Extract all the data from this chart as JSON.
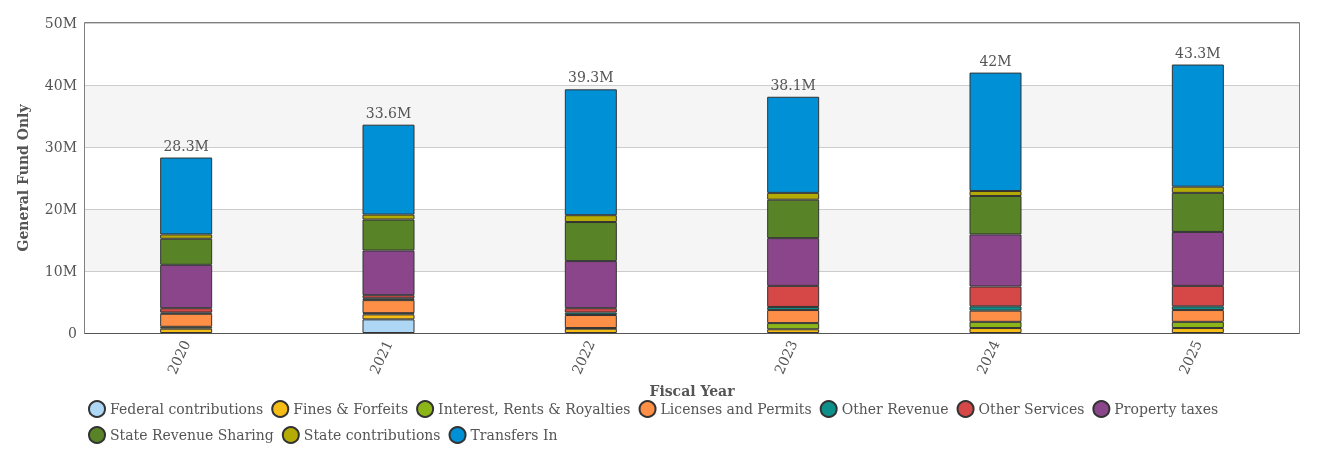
{
  "chart_data": {
    "type": "bar",
    "stacked": true,
    "xlabel": "Fiscal Year",
    "ylabel": "General Fund Only",
    "categories": [
      "2020",
      "2021",
      "2022",
      "2023",
      "2024",
      "2025"
    ],
    "series": [
      {
        "name": "Federal contributions",
        "color": "#aed6f5",
        "values": [
          null,
          2.2,
          null,
          null,
          null,
          null
        ]
      },
      {
        "name": "Fines & Forfeits",
        "color": "#f5bc16",
        "values": [
          0.7,
          0.8,
          0.7,
          0.6,
          0.8,
          0.8
        ]
      },
      {
        "name": "Interest, Rents & Royalties",
        "color": "#8cb618",
        "values": [
          0.3,
          0.2,
          0.1,
          1.0,
          1.0,
          1.0
        ]
      },
      {
        "name": "Licenses and Permits",
        "color": "#fd8f47",
        "values": [
          2.1,
          2.1,
          2.1,
          2.1,
          1.8,
          1.9
        ]
      },
      {
        "name": "Other Revenue",
        "color": "#0e8f8a",
        "values": [
          0.2,
          0.3,
          0.4,
          0.5,
          0.7,
          0.6
        ]
      },
      {
        "name": "Other Services",
        "color": "#d64747",
        "values": [
          0.7,
          0.5,
          0.7,
          3.4,
          3.2,
          3.3
        ]
      },
      {
        "name": "Property taxes",
        "color": "#8b468b",
        "values": [
          7.0,
          7.2,
          7.6,
          7.7,
          8.4,
          8.7
        ]
      },
      {
        "name": "State Revenue Sharing",
        "color": "#588427",
        "values": [
          4.2,
          5.0,
          6.3,
          6.2,
          6.2,
          6.3
        ]
      },
      {
        "name": "State contributions",
        "color": "#b5ab05",
        "values": [
          0.7,
          0.8,
          1.1,
          1.1,
          0.8,
          1.0
        ]
      },
      {
        "name": "Transfers In",
        "color": "#0090d6",
        "values": [
          12.4,
          14.5,
          20.3,
          15.5,
          19.1,
          19.7
        ]
      }
    ],
    "totals": [
      "28.3M",
      "33.6M",
      "39.3M",
      "38.1M",
      "42M",
      "43.3M"
    ],
    "ylim": [
      0,
      50
    ],
    "yticks": [
      0,
      {
        "value": 10,
        "label": "10M"
      },
      {
        "value": 20,
        "label": "20M"
      },
      {
        "value": 30,
        "label": "30M"
      },
      {
        "value": 40,
        "label": "40M"
      },
      {
        "value": 50,
        "label": "50M"
      }
    ],
    "grid": "y",
    "legend": "bottom"
  }
}
